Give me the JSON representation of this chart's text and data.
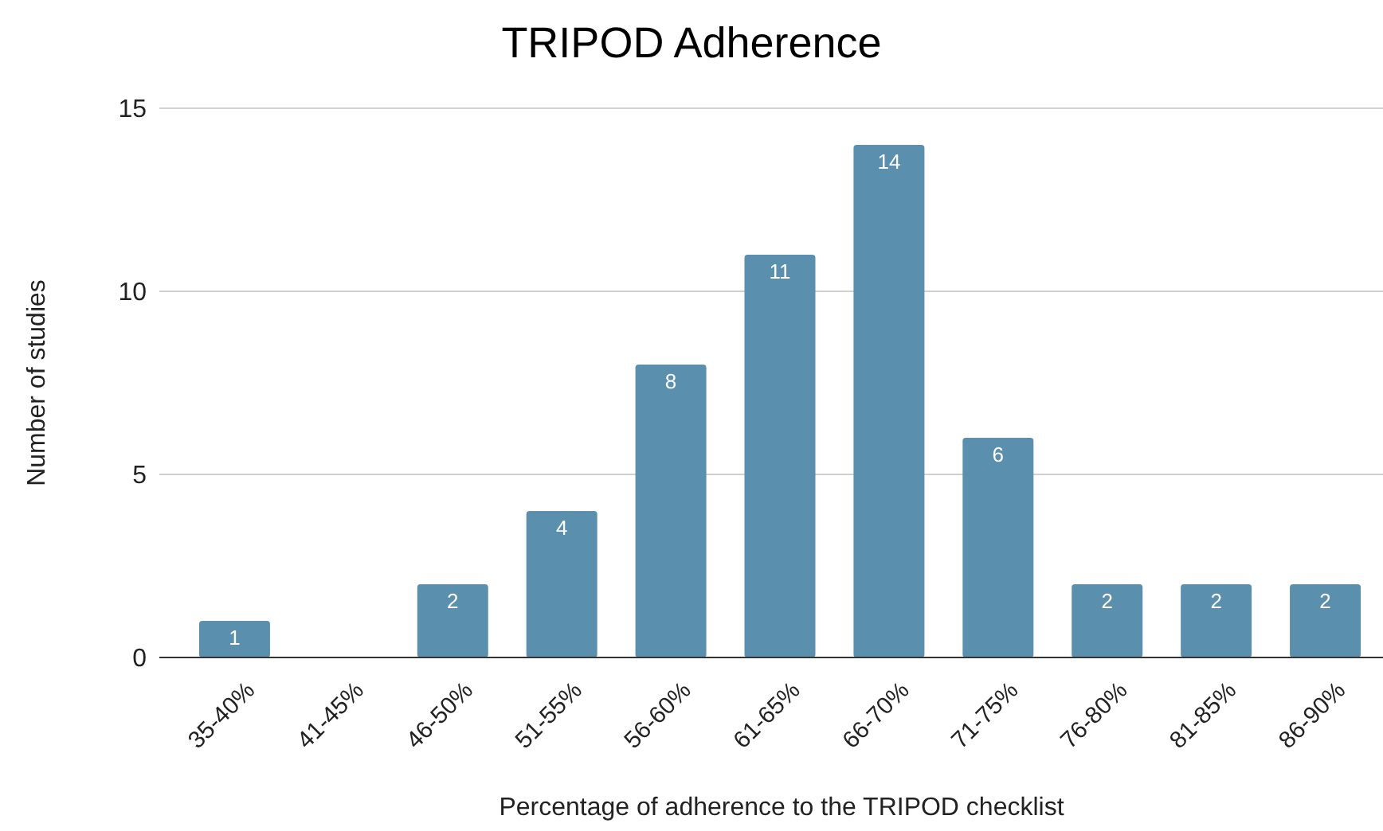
{
  "chart_data": {
    "type": "bar",
    "title": "TRIPOD Adherence",
    "xlabel": "Percentage of adherence to the TRIPOD checklist",
    "ylabel": "Number of studies",
    "categories": [
      "35-40%",
      "41-45%",
      "46-50%",
      "51-55%",
      "56-60%",
      "61-65%",
      "66-70%",
      "71-75%",
      "76-80%",
      "81-85%",
      "86-90%"
    ],
    "values": [
      1,
      0,
      2,
      4,
      8,
      11,
      14,
      6,
      2,
      2,
      2
    ],
    "value_labels": [
      "1",
      null,
      "2",
      "4",
      "8",
      "11",
      "14",
      "6",
      "2",
      "2",
      "2"
    ],
    "color": "#5a8fae",
    "ylim": [
      0,
      15
    ],
    "yticks": [
      0,
      5,
      10,
      15
    ],
    "grid": "y"
  }
}
